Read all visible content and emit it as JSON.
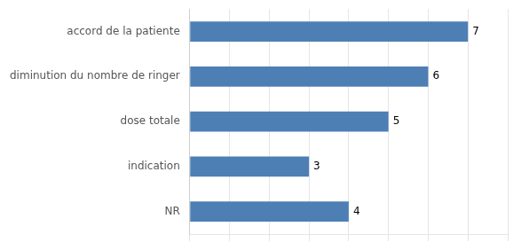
{
  "chart_data": {
    "type": "bar",
    "orientation": "horizontal",
    "categories": [
      "accord de la patiente",
      "diminution du nombre de ringer",
      "dose totale",
      "indication",
      "NR"
    ],
    "values": [
      7,
      6,
      5,
      3,
      4
    ],
    "color": "#4d7fb5",
    "xlim": [
      0,
      8
    ],
    "xticks": [
      0,
      1,
      2,
      3,
      4,
      5,
      6,
      7,
      8
    ],
    "grid": true,
    "data_labels": true,
    "tick_labels": "y"
  }
}
